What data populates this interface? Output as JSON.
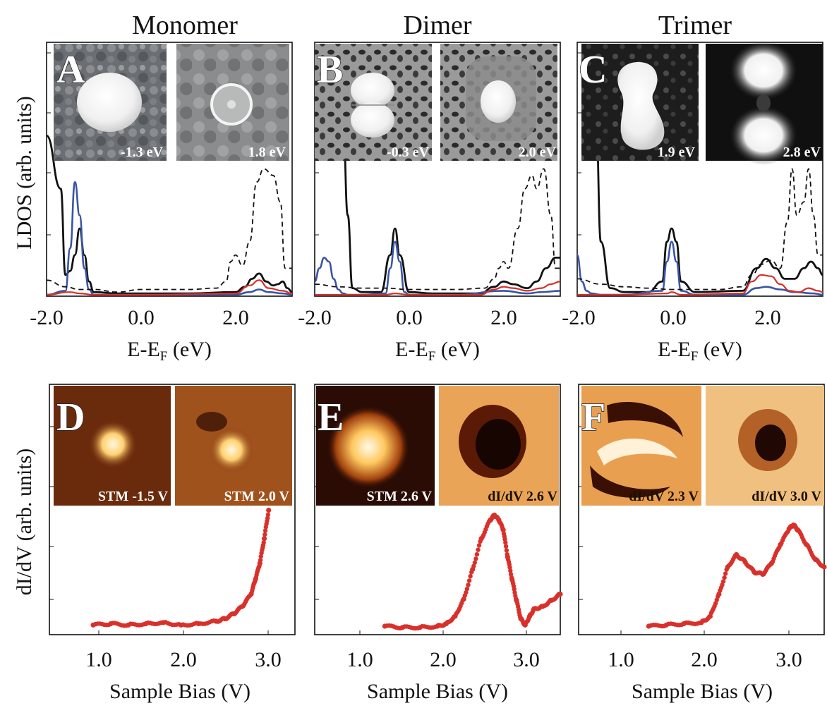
{
  "figure": {
    "titles": [
      "Monomer",
      "Dimer",
      "Trimer"
    ],
    "top_ylabel": "LDOS (arb. units)",
    "bottom_ylabel": "dI/dV (arb. units)",
    "top_xlabel_main": "E-E",
    "top_xlabel_sub": "F",
    "top_xlabel_unit": " (eV)",
    "bottom_xlabel": "Sample Bias (V)",
    "panel_labels": [
      "A",
      "B",
      "C",
      "D",
      "E",
      "F"
    ],
    "top_ticklabels": [
      "-2.0",
      "0.0",
      "2.0"
    ],
    "bottom_ticklabels": [
      "1.0",
      "2.0",
      "3.0"
    ],
    "inset_labels": {
      "A": [
        "-1.3 eV",
        "1.8 eV"
      ],
      "B": [
        "-0.3 eV",
        "2.0 eV"
      ],
      "C": [
        "1.9 eV",
        "2.8 eV"
      ],
      "D": [
        "STM -1.5 V",
        "STM  2.0 V"
      ],
      "E": [
        "STM  2.6 V",
        "dI/dV  2.6 V"
      ],
      "F": [
        "dI/dV  2.3 V",
        "dI/dV  3.0 V"
      ]
    },
    "colors": {
      "total": "#111111",
      "blue": "#3a55a4",
      "red": "#d8302a",
      "dashed": "#111111",
      "points": "#d8302a"
    }
  },
  "chart_data": [
    {
      "type": "line",
      "panel": "A",
      "title": "Monomer",
      "xlabel": "E-EF (eV)",
      "ylabel": "LDOS (arb. units)",
      "xlim": [
        -2.0,
        3.2
      ],
      "ylim": [
        0,
        1.0
      ],
      "series": [
        {
          "name": "",
          "style": "black-solid",
          "x": [
            -2.0,
            -1.7,
            -1.6,
            -1.5,
            -1.4,
            -1.3,
            -1.2,
            -1.1,
            -1.0,
            -0.5,
            0.0,
            1.0,
            2.0,
            2.2,
            2.35,
            2.5,
            2.65,
            2.8,
            2.9,
            3.0,
            3.1,
            3.2
          ],
          "y": [
            1.2,
            0.8,
            0.15,
            0.18,
            0.3,
            0.5,
            0.3,
            0.1,
            0.02,
            0.01,
            0.01,
            0.01,
            0.02,
            0.06,
            0.12,
            0.16,
            0.1,
            0.07,
            0.08,
            0.1,
            0.05,
            0.02
          ]
        },
        {
          "name": "",
          "style": "blue",
          "x": [
            -2.0,
            -1.6,
            -1.5,
            -1.4,
            -1.3,
            -1.2,
            -1.1,
            -1.0,
            -0.5,
            0.0,
            2.0,
            2.3,
            2.5,
            2.7,
            3.0,
            3.2
          ],
          "y": [
            0.0,
            0.03,
            0.35,
            0.85,
            0.6,
            0.2,
            0.04,
            0.0,
            0.0,
            0.0,
            0.0,
            0.02,
            0.04,
            0.02,
            0.01,
            0.0
          ]
        },
        {
          "name": "",
          "style": "red",
          "x": [
            -2.0,
            -1.5,
            -1.3,
            -1.0,
            0.0,
            2.0,
            2.3,
            2.5,
            2.7,
            3.0,
            3.2
          ],
          "y": [
            0.0,
            0.02,
            0.01,
            0.0,
            0.0,
            0.01,
            0.07,
            0.11,
            0.05,
            0.03,
            0.01
          ]
        },
        {
          "name": "",
          "style": "black-dashed",
          "x": [
            -2.0,
            -1.6,
            -1.3,
            -1.0,
            -0.5,
            0.0,
            1.0,
            1.6,
            1.8,
            1.9,
            2.0,
            2.15,
            2.3,
            2.45,
            2.6,
            2.8,
            2.95,
            3.05,
            3.2
          ],
          "y": [
            0.11,
            0.06,
            0.04,
            0.04,
            0.02,
            0.04,
            0.04,
            0.05,
            0.1,
            0.25,
            0.3,
            0.22,
            0.4,
            0.85,
            0.95,
            0.9,
            0.7,
            0.2,
            0.2
          ]
        }
      ]
    },
    {
      "type": "line",
      "panel": "B",
      "title": "Dimer",
      "xlabel": "E-EF (eV)",
      "ylabel": "LDOS (arb. units)",
      "xlim": [
        -2.0,
        3.2
      ],
      "ylim": [
        0,
        1.0
      ],
      "series": [
        {
          "name": "",
          "style": "black-solid",
          "x": [
            -1.4,
            -1.3,
            -1.2,
            -1.0,
            -0.6,
            -0.4,
            -0.3,
            -0.2,
            0.0,
            0.5,
            1.5,
            1.8,
            2.0,
            2.2,
            2.5,
            2.7,
            2.9,
            3.1,
            3.2
          ],
          "y": [
            1.3,
            0.6,
            0.05,
            0.02,
            0.02,
            0.3,
            0.5,
            0.3,
            0.02,
            0.01,
            0.01,
            0.06,
            0.1,
            0.08,
            0.05,
            0.1,
            0.2,
            0.28,
            0.28
          ]
        },
        {
          "name": "",
          "style": "blue",
          "x": [
            -2.0,
            -1.9,
            -1.8,
            -1.7,
            -1.6,
            -1.5,
            -1.4,
            -1.3,
            -1.0,
            -0.5,
            -0.4,
            -0.3,
            -0.2,
            -0.1,
            0.0,
            1.0,
            2.0,
            2.5,
            2.8,
            3.2
          ],
          "y": [
            0.1,
            0.2,
            0.28,
            0.25,
            0.12,
            0.04,
            0.01,
            0.0,
            0.0,
            0.01,
            0.2,
            0.4,
            0.25,
            0.02,
            0.0,
            0.0,
            0.03,
            0.01,
            0.02,
            0.03
          ]
        },
        {
          "name": "",
          "style": "red",
          "x": [
            -2.0,
            -0.5,
            -0.3,
            0.0,
            1.5,
            1.8,
            2.0,
            2.2,
            2.5,
            2.8,
            3.0,
            3.2
          ],
          "y": [
            0.0,
            0.0,
            0.01,
            0.0,
            0.0,
            0.04,
            0.06,
            0.05,
            0.03,
            0.05,
            0.08,
            0.1
          ]
        },
        {
          "name": "",
          "style": "black-dashed",
          "x": [
            -2.0,
            -1.5,
            -1.0,
            -0.5,
            0.0,
            1.0,
            1.6,
            1.8,
            1.9,
            2.0,
            2.1,
            2.3,
            2.45,
            2.6,
            2.7,
            2.85,
            3.0,
            3.1,
            3.2
          ],
          "y": [
            0.08,
            0.06,
            0.05,
            0.05,
            0.04,
            0.04,
            0.05,
            0.12,
            0.2,
            0.25,
            0.2,
            0.5,
            0.8,
            0.9,
            0.8,
            0.95,
            0.6,
            0.2,
            0.2
          ]
        }
      ]
    },
    {
      "type": "line",
      "panel": "C",
      "title": "Trimer",
      "xlabel": "E-EF (eV)",
      "ylabel": "LDOS (arb. units)",
      "xlim": [
        -2.0,
        3.2
      ],
      "ylim": [
        0,
        1.0
      ],
      "series": [
        {
          "name": "",
          "style": "black-solid",
          "x": [
            -1.6,
            -1.5,
            -1.3,
            -1.0,
            -0.5,
            -0.2,
            -0.1,
            0.0,
            0.1,
            0.2,
            0.5,
            1.5,
            1.8,
            2.0,
            2.2,
            2.4,
            2.6,
            2.8,
            2.95,
            3.1,
            3.2
          ],
          "y": [
            1.3,
            0.4,
            0.05,
            0.02,
            0.02,
            0.1,
            0.4,
            0.5,
            0.4,
            0.1,
            0.02,
            0.03,
            0.2,
            0.27,
            0.2,
            0.12,
            0.12,
            0.2,
            0.25,
            0.2,
            0.15
          ]
        },
        {
          "name": "",
          "style": "blue",
          "x": [
            -2.0,
            -1.9,
            -1.8,
            -1.7,
            -1.5,
            -1.0,
            -0.2,
            -0.1,
            0.0,
            0.1,
            0.2,
            0.5,
            1.5,
            1.8,
            2.0,
            2.3,
            2.6,
            3.0,
            3.2
          ],
          "y": [
            0.3,
            0.1,
            0.03,
            0.01,
            0.0,
            0.0,
            0.03,
            0.25,
            0.4,
            0.25,
            0.03,
            0.0,
            0.0,
            0.05,
            0.06,
            0.04,
            0.02,
            0.01,
            0.0
          ]
        },
        {
          "name": "",
          "style": "red",
          "x": [
            -2.0,
            -1.0,
            -0.1,
            0.0,
            0.2,
            1.5,
            1.7,
            1.9,
            2.1,
            2.3,
            2.5,
            2.7,
            2.9,
            3.1,
            3.2
          ],
          "y": [
            0.0,
            0.0,
            0.01,
            0.02,
            0.0,
            0.01,
            0.1,
            0.15,
            0.14,
            0.08,
            0.03,
            0.02,
            0.05,
            0.03,
            0.02
          ]
        },
        {
          "name": "",
          "style": "black-dashed",
          "x": [
            -2.0,
            -1.5,
            -1.0,
            -0.5,
            0.0,
            1.0,
            1.5,
            1.7,
            1.9,
            2.1,
            2.3,
            2.45,
            2.55,
            2.65,
            2.8,
            2.9,
            3.0,
            3.1,
            3.2
          ],
          "y": [
            0.12,
            0.08,
            0.06,
            0.05,
            0.04,
            0.04,
            0.06,
            0.15,
            0.23,
            0.26,
            0.2,
            0.55,
            0.95,
            0.6,
            0.7,
            0.95,
            0.6,
            0.3,
            0.3
          ]
        }
      ]
    },
    {
      "type": "scatter",
      "panel": "D",
      "xlabel": "Sample Bias (V)",
      "ylabel": "dI/dV (arb. units)",
      "xlim": [
        0.5,
        3.3
      ],
      "ylim": [
        0,
        1.0
      ],
      "series": [
        {
          "name": "",
          "x": [
            1.0,
            1.2,
            1.4,
            1.6,
            1.8,
            2.0,
            2.2,
            2.4,
            2.5,
            2.6,
            2.7,
            2.8,
            2.85,
            2.9,
            2.95,
            3.0
          ],
          "y": [
            0.05,
            0.06,
            0.05,
            0.06,
            0.07,
            0.05,
            0.06,
            0.08,
            0.1,
            0.14,
            0.2,
            0.3,
            0.42,
            0.55,
            0.75,
            0.98
          ]
        }
      ]
    },
    {
      "type": "scatter",
      "panel": "E",
      "xlabel": "Sample Bias (V)",
      "ylabel": "dI/dV (arb. units)",
      "xlim": [
        0.5,
        3.3
      ],
      "ylim": [
        0,
        1.0
      ],
      "series": [
        {
          "name": "",
          "x": [
            1.3,
            1.5,
            1.7,
            1.9,
            2.0,
            2.1,
            2.2,
            2.3,
            2.4,
            2.5,
            2.55,
            2.6,
            2.65,
            2.7,
            2.75,
            2.8,
            2.85,
            2.9,
            2.95,
            3.0,
            3.1,
            3.2,
            3.3
          ],
          "y": [
            0.04,
            0.03,
            0.03,
            0.04,
            0.06,
            0.12,
            0.26,
            0.5,
            0.75,
            0.9,
            0.94,
            0.9,
            0.82,
            0.6,
            0.42,
            0.25,
            0.1,
            0.05,
            0.12,
            0.18,
            0.2,
            0.25,
            0.3
          ]
        }
      ]
    },
    {
      "type": "scatter",
      "panel": "F",
      "xlabel": "Sample Bias (V)",
      "ylabel": "dI/dV (arb. units)",
      "xlim": [
        0.5,
        3.3
      ],
      "ylim": [
        0,
        1.0
      ],
      "series": [
        {
          "name": "",
          "x": [
            1.3,
            1.5,
            1.7,
            1.9,
            2.0,
            2.1,
            2.2,
            2.3,
            2.4,
            2.5,
            2.6,
            2.7,
            2.8,
            2.9,
            2.95,
            3.0,
            3.1,
            3.2,
            3.3
          ],
          "y": [
            0.04,
            0.05,
            0.06,
            0.07,
            0.12,
            0.3,
            0.52,
            0.62,
            0.56,
            0.48,
            0.46,
            0.55,
            0.7,
            0.83,
            0.86,
            0.82,
            0.7,
            0.58,
            0.52
          ]
        }
      ]
    }
  ]
}
